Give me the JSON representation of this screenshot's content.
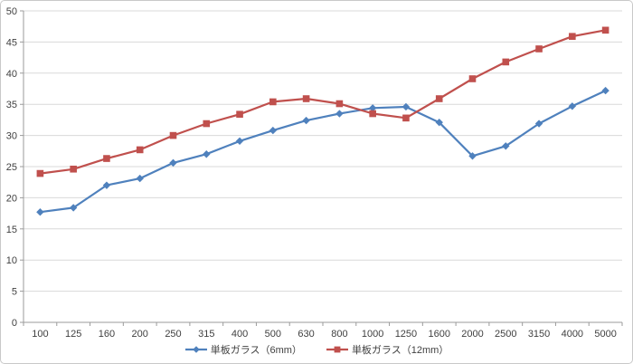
{
  "chart_data": {
    "type": "line",
    "title": "",
    "xlabel": "",
    "ylabel": "",
    "x_categories": [
      "100",
      "125",
      "160",
      "200",
      "250",
      "315",
      "400",
      "500",
      "630",
      "800",
      "1000",
      "1250",
      "1600",
      "2000",
      "2500",
      "3150",
      "4000",
      "5000"
    ],
    "ylim": [
      0,
      50
    ],
    "y_ticks": [
      0,
      5,
      10,
      15,
      20,
      25,
      30,
      35,
      40,
      45,
      50
    ],
    "grid": true,
    "legend_position": "bottom",
    "series": [
      {
        "name": "単板ガラス（6mm）",
        "color": "#4f81bd",
        "marker": "diamond",
        "values": [
          17.7,
          18.4,
          22.0,
          23.1,
          25.6,
          27.0,
          29.1,
          30.8,
          32.4,
          33.5,
          34.4,
          34.6,
          32.1,
          26.7,
          28.3,
          31.9,
          34.7,
          37.2
        ]
      },
      {
        "name": "単板ガラス（12mm）",
        "color": "#c0504d",
        "marker": "square",
        "values": [
          23.9,
          24.6,
          26.3,
          27.7,
          30.0,
          31.9,
          33.4,
          35.4,
          35.9,
          35.1,
          33.5,
          32.8,
          35.9,
          39.1,
          41.8,
          43.9,
          45.9,
          46.9
        ]
      }
    ]
  },
  "colors": {
    "background": "#ffffff",
    "frame_border": "#c9c9c9",
    "gridline": "#d9d9d9",
    "axis_line": "#9b9b9b",
    "tick_label": "#3f3f3f"
  }
}
